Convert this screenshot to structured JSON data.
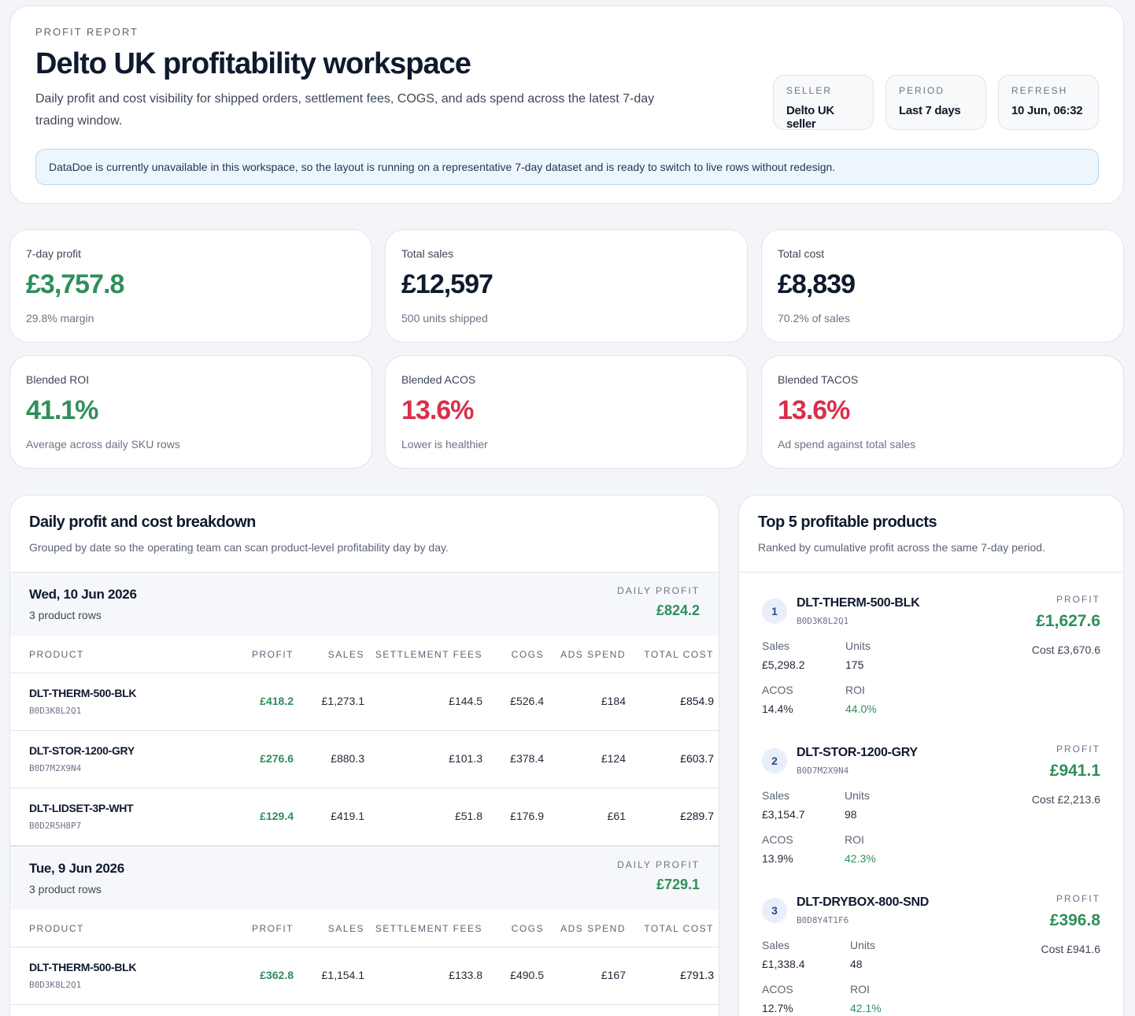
{
  "header": {
    "eyebrow": "PROFIT REPORT",
    "title": "Delto UK profitability workspace",
    "subtitle": "Daily profit and cost visibility for shipped orders, settlement fees, COGS, and ads spend across the latest 7-day trading window.",
    "meta": [
      {
        "label": "SELLER",
        "value": "Delto UK seller"
      },
      {
        "label": "PERIOD",
        "value": "Last 7 days"
      },
      {
        "label": "REFRESH",
        "value": "10 Jun, 06:32"
      }
    ],
    "notice": "DataDoe is currently unavailable in this workspace, so the layout is running on a representative 7-day dataset and is ready to switch to live rows without redesign."
  },
  "kpis": [
    {
      "label": "7-day profit",
      "value": "£3,757.8",
      "sub": "29.8% margin",
      "tone": "green"
    },
    {
      "label": "Total sales",
      "value": "£12,597",
      "sub": "500 units shipped",
      "tone": "dark"
    },
    {
      "label": "Total cost",
      "value": "£8,839",
      "sub": "70.2% of sales",
      "tone": "dark"
    },
    {
      "label": "Blended ROI",
      "value": "41.1%",
      "sub": "Average across daily SKU rows",
      "tone": "green"
    },
    {
      "label": "Blended ACOS",
      "value": "13.6%",
      "sub": "Lower is healthier",
      "tone": "red"
    },
    {
      "label": "Blended TACOS",
      "value": "13.6%",
      "sub": "Ad spend against total sales",
      "tone": "red"
    }
  ],
  "daily": {
    "title": "Daily profit and cost breakdown",
    "subtitle": "Grouped by date so the operating team can scan product-level profitability day by day.",
    "daily_profit_label": "DAILY PROFIT",
    "columns": [
      "PRODUCT",
      "PROFIT",
      "SALES",
      "SETTLEMENT FEES",
      "COGS",
      "ADS SPEND",
      "TOTAL COST"
    ],
    "days": [
      {
        "date": "Wed, 10 Jun 2026",
        "rows_label": "3 product rows",
        "profit": "£824.2",
        "rows": [
          {
            "sku": "DLT-THERM-500-BLK",
            "asin": "B0D3K8L2Q1",
            "profit": "£418.2",
            "sales": "£1,273.1",
            "fees": "£144.5",
            "cogs": "£526.4",
            "ads": "£184",
            "total": "£854.9"
          },
          {
            "sku": "DLT-STOR-1200-GRY",
            "asin": "B0D7M2X9N4",
            "profit": "£276.6",
            "sales": "£880.3",
            "fees": "£101.3",
            "cogs": "£378.4",
            "ads": "£124",
            "total": "£603.7"
          },
          {
            "sku": "DLT-LIDSET-3P-WHT",
            "asin": "B0D2R5H8P7",
            "profit": "£129.4",
            "sales": "£419.1",
            "fees": "£51.8",
            "cogs": "£176.9",
            "ads": "£61",
            "total": "£289.7"
          }
        ]
      },
      {
        "date": "Tue, 9 Jun 2026",
        "rows_label": "3 product rows",
        "profit": "£729.1",
        "rows": [
          {
            "sku": "DLT-THERM-500-BLK",
            "asin": "B0D3K8L2Q1",
            "profit": "£362.8",
            "sales": "£1,154.1",
            "fees": "£133.8",
            "cogs": "£490.5",
            "ads": "£167",
            "total": "£791.3"
          }
        ]
      }
    ]
  },
  "top": {
    "title": "Top 5 profitable products",
    "subtitle": "Ranked by cumulative profit across the same 7-day period.",
    "profit_label": "PROFIT",
    "labels": {
      "sales": "Sales",
      "units": "Units",
      "acos": "ACOS",
      "roi": "ROI"
    },
    "products": [
      {
        "rank": "1",
        "sku": "DLT-THERM-500-BLK",
        "asin": "B0D3K8L2Q1",
        "profit": "£1,627.6",
        "cost": "Cost £3,670.6",
        "sales": "£5,298.2",
        "units": "175",
        "acos": "14.4%",
        "roi": "44.0%"
      },
      {
        "rank": "2",
        "sku": "DLT-STOR-1200-GRY",
        "asin": "B0D7M2X9N4",
        "profit": "£941.1",
        "cost": "Cost £2,213.6",
        "sales": "£3,154.7",
        "units": "98",
        "acos": "13.9%",
        "roi": "42.3%"
      },
      {
        "rank": "3",
        "sku": "DLT-DRYBOX-800-SND",
        "asin": "B0D8Y4T1F6",
        "profit": "£396.8",
        "cost": "Cost £941.6",
        "sales": "£1,338.4",
        "units": "48",
        "acos": "12.7%",
        "roi": "42.1%"
      }
    ]
  }
}
